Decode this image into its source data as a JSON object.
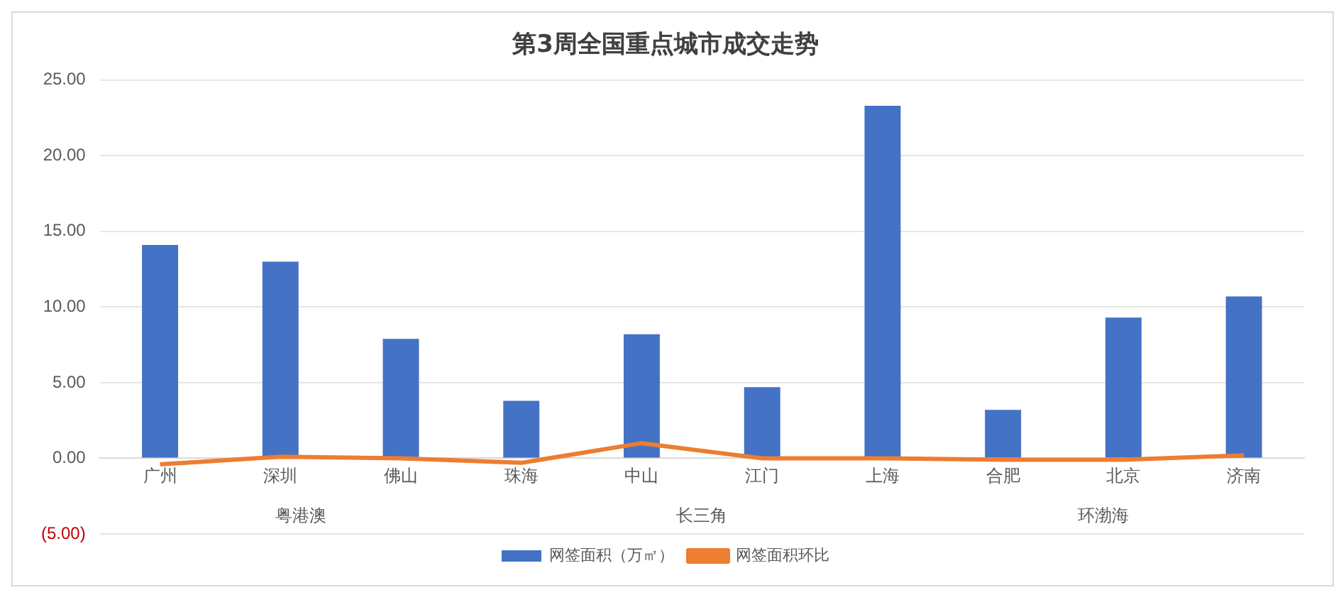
{
  "chart_data": {
    "type": "bar",
    "title": "第3周全国重点城市成交走势",
    "categories": [
      "广州",
      "深圳",
      "佛山",
      "珠海",
      "中山",
      "江门",
      "上海",
      "合肥",
      "北京",
      "济南"
    ],
    "series": [
      {
        "name": "网签面积（万㎡）",
        "color": "#4472c4",
        "values": [
          14.1,
          13.0,
          7.9,
          3.8,
          8.2,
          4.7,
          23.3,
          3.2,
          9.3,
          10.7
        ]
      },
      {
        "name": "网签面积环比",
        "type": "line",
        "color": "#ed7d31",
        "values": [
          -0.4,
          0.1,
          0.0,
          -0.3,
          1.0,
          0.0,
          0.0,
          -0.1,
          -0.1,
          0.2
        ]
      }
    ],
    "ylim": [
      -5,
      25
    ],
    "yticks": [
      {
        "value": -5,
        "label": "(5.00)"
      },
      {
        "value": 0,
        "label": "0.00"
      },
      {
        "value": 5,
        "label": "5.00"
      },
      {
        "value": 10,
        "label": "10.00"
      },
      {
        "value": 15,
        "label": "15.00"
      },
      {
        "value": 20,
        "label": "20.00"
      },
      {
        "value": 25,
        "label": "25.00"
      }
    ],
    "annotations": [
      "粤港澳",
      "长三角",
      "环渤海"
    ],
    "grid": "y",
    "legend": "bottom",
    "marker": "none",
    "line_style": "solid"
  }
}
